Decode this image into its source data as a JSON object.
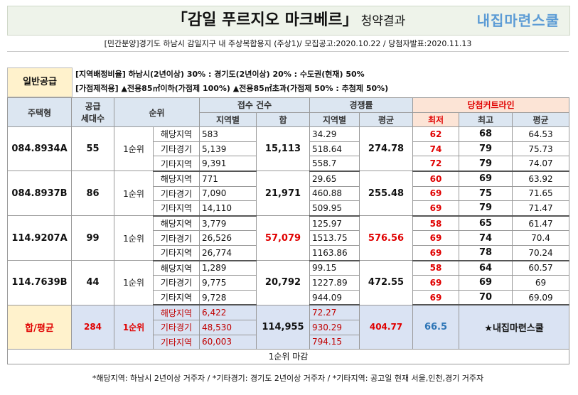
{
  "header": {
    "title": "「감일 푸르지오 마크베르」",
    "title_suffix": "청약결과",
    "logo": "내집마련스쿨",
    "subtitle": "[민간분양]경기도 하남시 감일지구 내 주상복합용지 (주상1)/ 모집공고:2020.10.22 / 당첨자발표:2020.11.13"
  },
  "info": {
    "label": "일반공급",
    "lines": [
      "[지역배정비율] 하남시(2년이상) 30% : 경기도(2년이상) 20% : 수도권(현재) 50%",
      "[가점제적용] ▲전용85㎡이하(가점제 100%) ▲전용85㎡초과(가점제 50% : 추첨제 50%)"
    ]
  },
  "table": {
    "columns": {
      "type": "주택형",
      "supply": "공급\n세대수",
      "rank": "순위",
      "applicants": "접수 건수",
      "applicants_region": "지역별",
      "applicants_sum": "합",
      "ratio": "경쟁률",
      "ratio_region": "지역별",
      "ratio_avg": "평균",
      "cutline": "당첨커트라인",
      "min": "최저",
      "max": "최고",
      "avg": "평균"
    },
    "rows": [
      {
        "type": "084.8934A",
        "supply": "55",
        "rank": "1순위",
        "sum": "15,113",
        "ratio_avg": "274.78",
        "sub": [
          [
            "해당지역",
            "583",
            "34.29",
            "62",
            "68",
            "64.53"
          ],
          [
            "기타경기",
            "5,139",
            "518.64",
            "74",
            "79",
            "75.73"
          ],
          [
            "기타지역",
            "9,391",
            "558.7",
            "72",
            "79",
            "74.07"
          ]
        ]
      },
      {
        "type": "084.8937B",
        "supply": "86",
        "rank": "1순위",
        "sum": "21,971",
        "ratio_avg": "255.48",
        "sub": [
          [
            "해당지역",
            "771",
            "29.65",
            "60",
            "69",
            "63.92"
          ],
          [
            "기타경기",
            "7,090",
            "460.88",
            "69",
            "75",
            "71.65"
          ],
          [
            "기타지역",
            "14,110",
            "509.95",
            "69",
            "79",
            "71.47"
          ]
        ]
      },
      {
        "type": "114.9207A",
        "supply": "99",
        "rank": "1순위",
        "sum": "57,079",
        "ratio_avg": "576.56",
        "highlight_color": "#e00000",
        "sub": [
          [
            "해당지역",
            "3,779",
            "125.97",
            "58",
            "65",
            "61.47"
          ],
          [
            "기타경기",
            "26,526",
            "1513.75",
            "69",
            "74",
            "70.4"
          ],
          [
            "기타지역",
            "26,774",
            "1163.86",
            "69",
            "78",
            "70.24"
          ]
        ]
      },
      {
        "type": "114.7639B",
        "supply": "44",
        "rank": "1순위",
        "sum": "20,792",
        "ratio_avg": "472.55",
        "sub": [
          [
            "해당지역",
            "1,289",
            "99.15",
            "58",
            "64",
            "60.57"
          ],
          [
            "기타경기",
            "9,775",
            "1227.89",
            "69",
            "69",
            "69"
          ],
          [
            "기타지역",
            "9,728",
            "944.09",
            "69",
            "70",
            "69.09"
          ]
        ]
      }
    ],
    "total": {
      "label": "합/평균",
      "supply": "284",
      "rank": "1순위",
      "sum": "114,955",
      "ratio_avg": "404.77",
      "min": "66.5",
      "brand": "★내집마련스쿨",
      "sub": [
        [
          "해당지역",
          "6,422",
          "72.27"
        ],
        [
          "기타경기",
          "48,530",
          "930.29"
        ],
        [
          "기타지역",
          "60,003",
          "794.15"
        ]
      ]
    },
    "status": "1순위 마감"
  },
  "footnote": "*해당지역: 하남시 2년이상 거주자 / *기타경기: 경기도 2년이상 거주자 / *기타지역: 공고일 현재 서울,인천,경기 거주자"
}
